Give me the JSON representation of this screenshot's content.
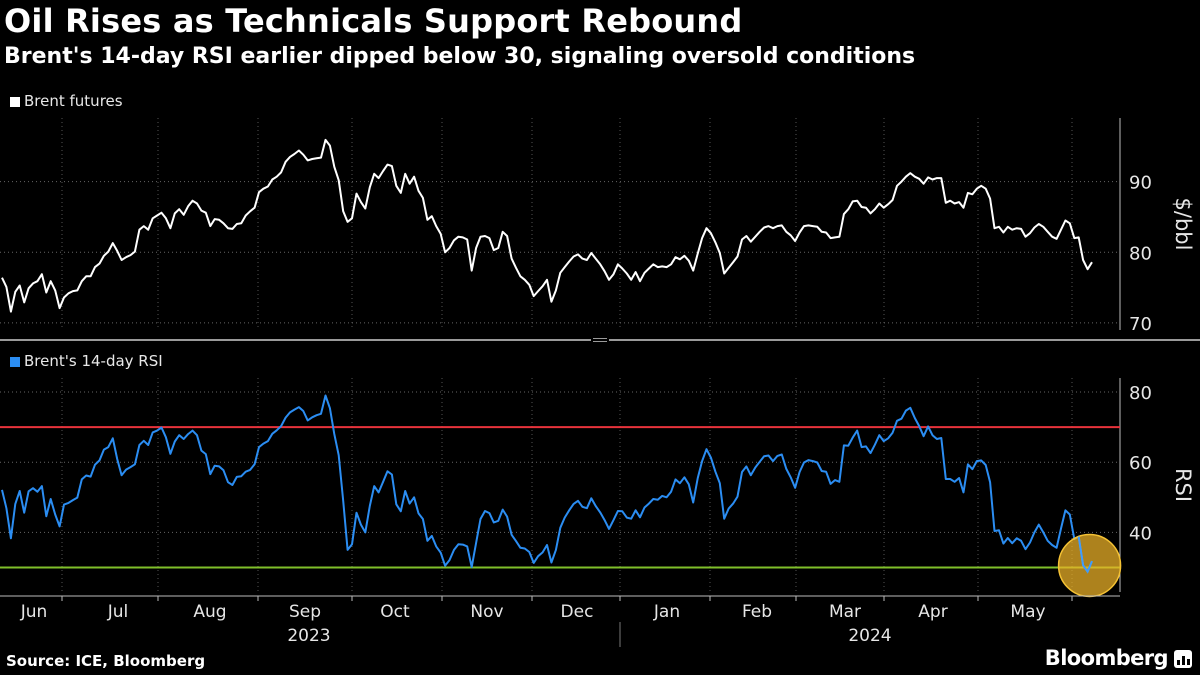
{
  "title": "Oil Rises as Technicals Support Rebound",
  "subtitle": "Brent's 14-day RSI earlier dipped below 30, signaling oversold conditions",
  "source": "Source: ICE, Bloomberg",
  "brand": "Bloomberg",
  "chart_data": [
    {
      "type": "line",
      "legend": "Brent futures",
      "color": "#ffffff",
      "ylabel": "$/bbl",
      "ylim": [
        69,
        99
      ],
      "yticks": [
        70,
        80,
        90
      ],
      "grid": true,
      "values": [
        76.4,
        75.1,
        71.6,
        74.4,
        75.3,
        72.9,
        74.9,
        75.6,
        75.9,
        76.9,
        74.3,
        75.9,
        74.6,
        72.1,
        73.6,
        74.2,
        74.5,
        74.6,
        75.9,
        76.6,
        76.6,
        77.9,
        78.4,
        79.5,
        80.1,
        81.3,
        80.2,
        78.9,
        79.3,
        79.6,
        80.1,
        83.2,
        83.7,
        83.2,
        84.8,
        85.2,
        85.6,
        84.8,
        83.4,
        85.5,
        86.1,
        85.3,
        86.5,
        87.3,
        86.9,
        85.9,
        85.6,
        83.7,
        84.7,
        84.6,
        84.1,
        83.4,
        83.3,
        84.0,
        84.1,
        85.2,
        85.8,
        86.3,
        88.5,
        89.0,
        89.3,
        90.3,
        90.7,
        91.3,
        92.8,
        93.5,
        93.9,
        94.4,
        93.8,
        93.0,
        93.2,
        93.3,
        93.4,
        95.9,
        95.1,
        92.1,
        90.2,
        85.8,
        84.3,
        84.8,
        88.3,
        87.1,
        86.2,
        89.2,
        91.1,
        90.5,
        91.5,
        92.4,
        92.2,
        89.4,
        88.4,
        91.1,
        89.7,
        90.7,
        88.7,
        87.7,
        84.6,
        85.1,
        83.7,
        82.6,
        80.0,
        80.6,
        81.7,
        82.2,
        82.1,
        81.8,
        77.4,
        80.6,
        82.2,
        82.3,
        82.0,
        80.3,
        80.6,
        82.9,
        82.3,
        79.1,
        77.8,
        76.6,
        76.1,
        75.4,
        73.8,
        74.5,
        75.2,
        76.1,
        73.0,
        74.6,
        77.1,
        77.9,
        78.7,
        79.4,
        79.7,
        79.1,
        78.9,
        79.9,
        79.1,
        78.3,
        77.3,
        76.1,
        76.9,
        78.3,
        77.7,
        77.0,
        76.1,
        77.2,
        75.9,
        77.1,
        77.7,
        78.3,
        77.9,
        78.0,
        77.9,
        78.3,
        79.3,
        79.0,
        79.5,
        78.8,
        77.4,
        79.8,
        82.0,
        83.4,
        82.7,
        81.4,
        79.9,
        77.0,
        77.8,
        78.6,
        79.4,
        81.8,
        82.3,
        81.5,
        82.2,
        82.9,
        83.5,
        83.7,
        83.4,
        83.7,
        83.8,
        82.9,
        82.4,
        81.6,
        82.8,
        83.7,
        83.8,
        83.7,
        83.6,
        82.9,
        82.8,
        82.0,
        82.1,
        82.2,
        85.4,
        86.1,
        87.2,
        87.3,
        86.4,
        86.3,
        85.5,
        86.1,
        86.9,
        86.3,
        86.8,
        87.4,
        89.4,
        90.0,
        90.7,
        91.2,
        90.7,
        90.4,
        89.7,
        90.6,
        90.3,
        90.5,
        90.5,
        87.0,
        87.3,
        86.9,
        87.1,
        86.3,
        88.4,
        88.2,
        89.0,
        89.4,
        89.0,
        87.6,
        83.4,
        83.6,
        82.8,
        83.6,
        83.2,
        83.4,
        83.3,
        82.2,
        82.7,
        83.5,
        84.0,
        83.6,
        82.9,
        82.2,
        81.9,
        83.2,
        84.5,
        84.1,
        82.0,
        82.1,
        78.9,
        77.6,
        78.6
      ],
      "x_tick_labels": [
        "Jun",
        "Jul",
        "Aug",
        "Sep",
        "Oct",
        "Nov",
        "Dec",
        "Jan",
        "Feb",
        "Mar",
        "Apr",
        "May"
      ],
      "years": [
        "2023",
        "2024"
      ]
    },
    {
      "type": "line",
      "legend": "Brent's 14-day RSI",
      "color": "#2b8df2",
      "ylabel": "RSI",
      "ylim": [
        23,
        84
      ],
      "yticks": [
        40,
        60,
        80
      ],
      "grid": true,
      "threshold_lines": [
        {
          "value": 70,
          "color": "#e8333b"
        },
        {
          "value": 30,
          "color": "#7fbf2a"
        }
      ],
      "values": [
        52.1,
        46.9,
        38.3,
        48.1,
        51.8,
        45.6,
        51.7,
        52.6,
        51.6,
        53.2,
        44.6,
        49.5,
        45.1,
        41.7,
        47.9,
        48.4,
        49.2,
        49.9,
        55.1,
        56.2,
        55.9,
        59.3,
        60.5,
        63.6,
        64.3,
        66.8,
        60.9,
        56.3,
        57.9,
        58.6,
        59.4,
        64.9,
        66.1,
        64.9,
        68.5,
        69.0,
        69.9,
        67.1,
        62.4,
        65.9,
        67.7,
        66.6,
        68.0,
        69.0,
        67.7,
        63.3,
        62.3,
        56.6,
        59.0,
        58.8,
        57.7,
        54.3,
        53.5,
        55.8,
        56.0,
        57.3,
        57.8,
        59.4,
        64.3,
        65.3,
        66.0,
        68.1,
        69.1,
        70.3,
        72.7,
        74.2,
        75.0,
        75.7,
        74.6,
        71.9,
        72.8,
        73.4,
        73.8,
        79.0,
        75.4,
        68.0,
        62.0,
        49.0,
        35.0,
        36.6,
        45.6,
        42.2,
        40.0,
        47.5,
        53.2,
        51.4,
        54.4,
        57.4,
        56.5,
        48.0,
        46.0,
        51.8,
        48.2,
        50.0,
        45.4,
        43.8,
        37.6,
        39.0,
        36.0,
        34.2,
        30.5,
        32.1,
        35.0,
        36.6,
        36.5,
        36.0,
        30.1,
        37.0,
        43.8,
        46.1,
        45.5,
        42.8,
        43.3,
        46.5,
        44.5,
        39.3,
        37.5,
        35.6,
        35.4,
        34.4,
        31.3,
        33.2,
        34.3,
        36.4,
        31.4,
        35.0,
        41.3,
        44.2,
        46.3,
        48.1,
        49.0,
        47.3,
        46.9,
        49.7,
        47.5,
        45.7,
        43.5,
        41.0,
        43.5,
        46.1,
        46.0,
        44.2,
        43.9,
        46.3,
        44.3,
        47.1,
        48.2,
        49.5,
        49.3,
        50.4,
        50.0,
        51.6,
        55.1,
        54.0,
        55.7,
        53.7,
        48.5,
        55.4,
        60.3,
        63.7,
        61.3,
        57.3,
        54.0,
        43.9,
        46.8,
        48.2,
        50.2,
        57.2,
        58.8,
        56.3,
        58.5,
        60.1,
        61.7,
        61.9,
        60.3,
        61.8,
        62.2,
        58.1,
        55.7,
        52.7,
        57.2,
        59.9,
        60.6,
        60.3,
        59.9,
        57.5,
        57.3,
        53.8,
        54.9,
        54.4,
        64.8,
        64.7,
        67.0,
        69.0,
        64.3,
        64.5,
        62.6,
        65.0,
        67.7,
        66.0,
        66.8,
        68.4,
        71.8,
        72.4,
        74.7,
        75.5,
        72.6,
        70.3,
        67.4,
        70.2,
        67.7,
        66.6,
        66.9,
        55.2,
        55.2,
        54.4,
        55.5,
        51.4,
        59.4,
        58.0,
        60.3,
        60.5,
        59.2,
        54.3,
        40.4,
        40.6,
        36.8,
        38.4,
        36.9,
        38.3,
        37.6,
        35.2,
        37.1,
        40.0,
        42.2,
        40.0,
        37.6,
        36.4,
        35.6,
        41.1,
        46.3,
        45.1,
        38.1,
        38.8,
        30.6,
        28.8,
        31.8
      ],
      "highlight": "oversold dip below 30"
    }
  ]
}
